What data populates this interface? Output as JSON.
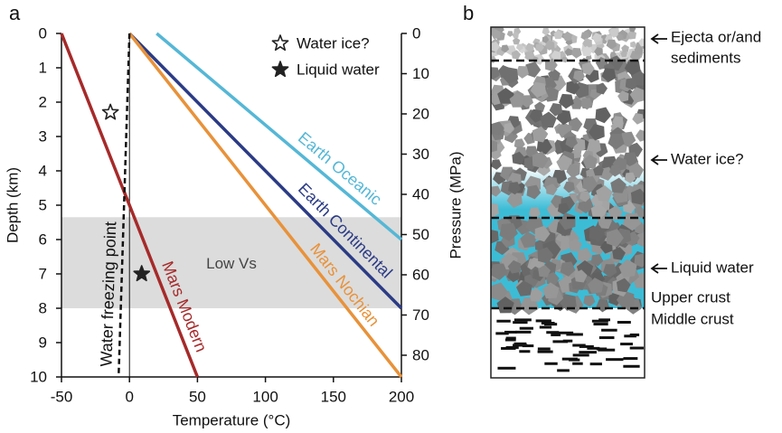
{
  "panel_labels": [
    "a",
    "b"
  ],
  "chart_data": {
    "type": "line",
    "xlabel": "Temperature (°C)",
    "ylabel": "Depth (km)",
    "y2label": "Pressure (MPa)",
    "xlim": [
      -50,
      200
    ],
    "xticks": [
      -50,
      0,
      50,
      100,
      150,
      200
    ],
    "ylim": [
      0,
      10
    ],
    "y_inverted": true,
    "yticks": [
      0,
      1,
      2,
      3,
      4,
      5,
      6,
      7,
      8,
      9,
      10
    ],
    "y2lim": [
      0,
      85.4
    ],
    "y2ticks": [
      0,
      10,
      20,
      30,
      40,
      50,
      60,
      70,
      80
    ],
    "series": [
      {
        "name": "Earth Oceanic",
        "color": "#55b7d6",
        "x": [
          20,
          200
        ],
        "values": [
          0,
          6
        ]
      },
      {
        "name": "Earth Continental",
        "color": "#2b3b85",
        "x": [
          0,
          200
        ],
        "values": [
          0,
          8
        ]
      },
      {
        "name": "Mars Nochian",
        "color": "#e8923a",
        "x": [
          0,
          200
        ],
        "values": [
          0,
          10
        ]
      },
      {
        "name": "Mars Modern",
        "color": "#a62a2a",
        "x": [
          -50,
          50
        ],
        "values": [
          0,
          10
        ]
      },
      {
        "name": "Water freezing point",
        "color": "#111111",
        "dashed": true,
        "x": [
          0,
          -8
        ],
        "values": [
          0,
          10
        ]
      }
    ],
    "markers": [
      {
        "name": "Water ice?",
        "x": -14,
        "y": 2.3,
        "filled": false
      },
      {
        "name": "Liquid water",
        "x": 9,
        "y": 7.0,
        "filled": true
      }
    ],
    "band": {
      "label": "Low Vs",
      "range": [
        5.35,
        8.0
      ],
      "color": "#dcdcdc"
    }
  },
  "diagram": {
    "annotations": [
      {
        "lines": [
          "Ejecta or/and",
          "sediments"
        ]
      },
      {
        "lines": [
          "Water ice?"
        ]
      },
      {
        "lines": [
          "Liquid water"
        ]
      }
    ],
    "layers": [
      "Upper crust",
      "Middle crust"
    ]
  }
}
